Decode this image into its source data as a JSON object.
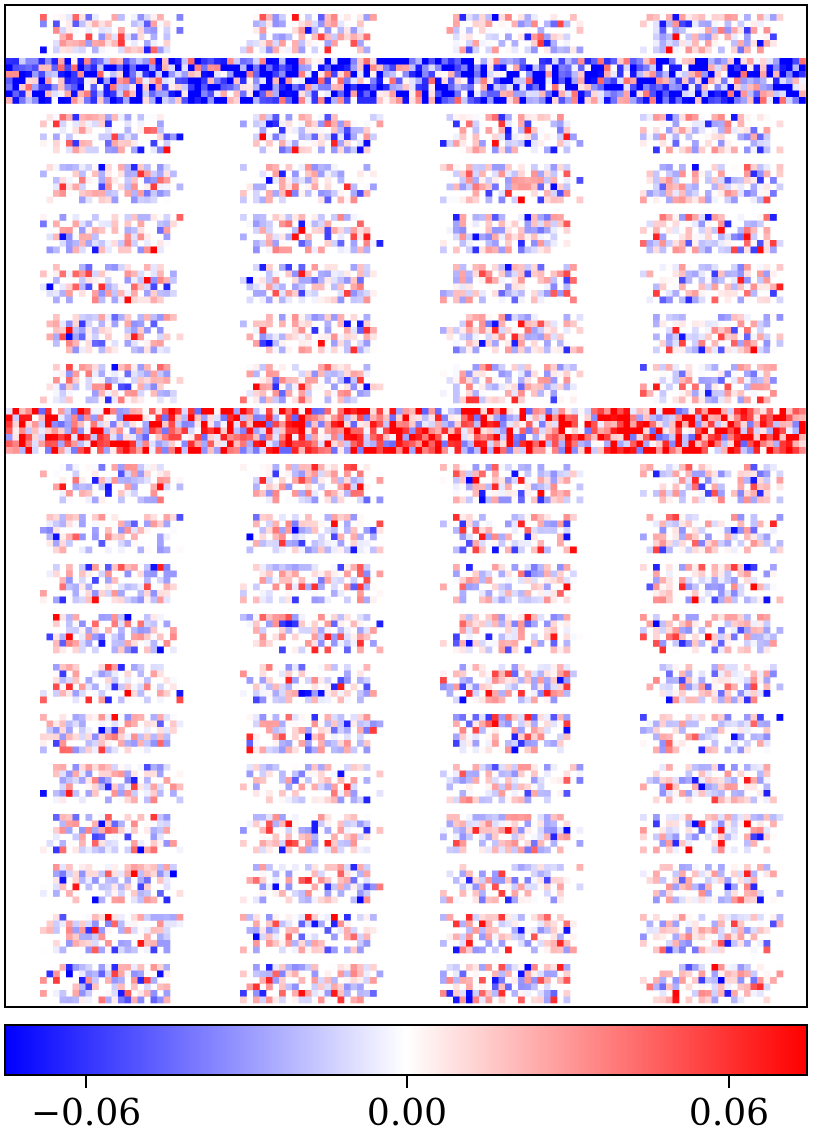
{
  "chart_data": {
    "type": "heatmap",
    "title": "",
    "grid": {
      "rows": 20,
      "cols": 4
    },
    "strong_rows": [
      1,
      8
    ],
    "colormap": [
      "#0000ff",
      "#ffffff",
      "#ff0000"
    ],
    "clim": [
      -0.08,
      0.08
    ],
    "colorbar": {
      "orientation": "horizontal",
      "ticks": [
        -0.06,
        0.0,
        0.06
      ],
      "tick_labels": [
        "−0.06",
        "0.00",
        "0.06"
      ]
    },
    "seed": 1337
  }
}
